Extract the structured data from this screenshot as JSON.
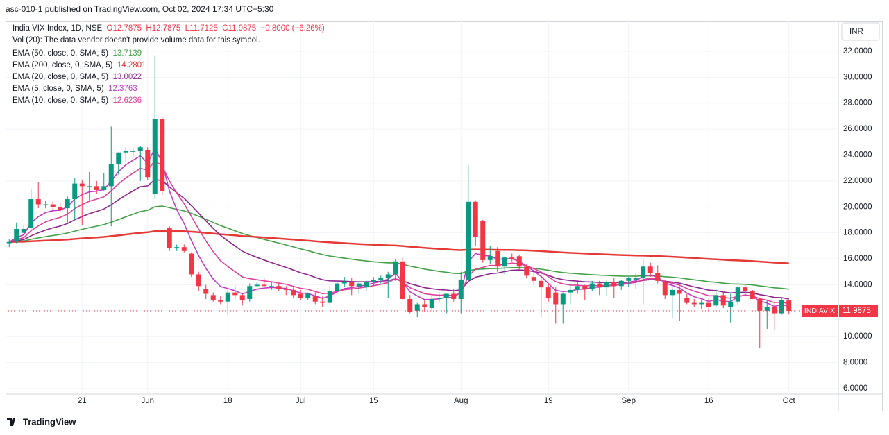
{
  "header": {
    "published": "asc-010-1 published on TradingView.com, Oct 02, 2024 17:34 UTC+5:30",
    "footer": "TradingView",
    "currency": "INR"
  },
  "chart_data": {
    "type": "candlestick",
    "symbol": "India VIX Index, 1D, NSE",
    "ohlc_text": "O12.7875  H12.7875  L11.7125  C11.9875  −0.8000 (−6.26%)",
    "volume_note": "Vol (20): The data vendor doesn't provide volume data for this symbol.",
    "indicators": [
      {
        "label": "EMA (50, close, 0, SMA, 5)",
        "value": 13.7139,
        "period": 50,
        "color": "#43a047"
      },
      {
        "label": "EMA (200, close, 0, SMA, 5)",
        "value": 14.2801,
        "period": 200,
        "color": "#e53935"
      },
      {
        "label": "EMA (20, close, 0, SMA, 5)",
        "value": 13.0022,
        "period": 20,
        "color": "#8e248e"
      },
      {
        "label": "EMA (5, close, 0, SMA, 5)",
        "value": 12.3763,
        "period": 5,
        "color": "#c23bc8"
      },
      {
        "label": "EMA (10, close, 0, SMA, 5)",
        "value": 12.6236,
        "period": 10,
        "color": "#e0409a"
      }
    ],
    "last_tag": "INDIAVIX",
    "last_value": 11.9875,
    "up_color": "#089981",
    "down_color": "#f23645",
    "categories": [
      null,
      null,
      null,
      null,
      null,
      null,
      null,
      null,
      null,
      null,
      "21",
      null,
      null,
      null,
      null,
      null,
      null,
      null,
      null,
      "Jun",
      null,
      null,
      null,
      null,
      null,
      null,
      null,
      null,
      null,
      null,
      "18",
      null,
      null,
      null,
      null,
      null,
      null,
      null,
      null,
      null,
      "Jul",
      null,
      null,
      null,
      null,
      null,
      null,
      null,
      null,
      null,
      "15",
      null,
      null,
      null,
      null,
      null,
      null,
      null,
      null,
      null,
      null,
      null,
      "Aug",
      null,
      null,
      null,
      null,
      null,
      null,
      null,
      null,
      null,
      null,
      null,
      "19",
      null,
      null,
      null,
      null,
      null,
      null,
      null,
      null,
      null,
      null,
      "Sep",
      null,
      null,
      null,
      null,
      null,
      null,
      null,
      null,
      null,
      null,
      "16",
      null,
      null,
      null,
      null,
      null,
      null,
      null,
      null,
      null,
      null,
      "Oct"
    ],
    "open": [
      17.2,
      17.4,
      18.0,
      18.4,
      20.6,
      20.2,
      20.2,
      20.0,
      19.9,
      20.6,
      21.8,
      21.6,
      21.6,
      21.3,
      21.6,
      23.3,
      24.2,
      24.3,
      24.3,
      24.4,
      21.0,
      26.8,
      18.4,
      16.8,
      16.9,
      16.4,
      14.8,
      13.7,
      13.2,
      12.8,
      12.7,
      13.4,
      13.2,
      12.9,
      13.9,
      14.0,
      13.9,
      13.9,
      13.7,
      13.6,
      13.3,
      13.0,
      13.1,
      12.7,
      12.6,
      13.5,
      14.1,
      14.2,
      13.9,
      13.8,
      14.2,
      14.4,
      14.5,
      14.8,
      15.8,
      12.9,
      12.0,
      12.5,
      12.2,
      12.9,
      13.0,
      13.3,
      12.9,
      14.4,
      20.4,
      18.9,
      15.9,
      16.6,
      15.4,
      16.1,
      16.2,
      15.4,
      14.6,
      14.3,
      13.8,
      13.4,
      12.5,
      13.4,
      13.6,
      13.9,
      13.7,
      14.1,
      13.8,
      14.2,
      13.9,
      14.3,
      14.4,
      14.5,
      15.4,
      14.9,
      14.2,
      13.2,
      13.6,
      13.0,
      12.6,
      12.5,
      12.6,
      12.4,
      13.2,
      12.3,
      12.7,
      13.8,
      13.5,
      12.9,
      12.0,
      12.3,
      11.8,
      12.7875
    ],
    "high": [
      17.5,
      18.8,
      18.6,
      21.4,
      21.9,
      20.5,
      20.5,
      20.3,
      20.8,
      22.2,
      22.1,
      22.7,
      22.0,
      22.6,
      26.2,
      24.2,
      24.6,
      24.5,
      24.7,
      24.6,
      31.7,
      26.9,
      18.5,
      17.1,
      17.1,
      16.5,
      15.0,
      14.0,
      13.4,
      13.1,
      13.6,
      13.9,
      13.3,
      14.1,
      14.2,
      14.5,
      14.2,
      14.1,
      13.9,
      13.8,
      13.6,
      13.4,
      13.4,
      13.1,
      13.9,
      14.3,
      14.6,
      14.5,
      14.3,
      14.4,
      14.6,
      14.7,
      15.0,
      16.0,
      16.1,
      13.2,
      12.6,
      12.8,
      13.1,
      13.4,
      13.3,
      13.7,
      15.0,
      23.2,
      20.5,
      19.0,
      17.0,
      16.9,
      16.2,
      16.4,
      16.3,
      15.6,
      15.4,
      14.8,
      14.1,
      13.8,
      13.4,
      14.1,
      14.2,
      14.0,
      14.3,
      14.3,
      14.4,
      14.5,
      14.4,
      14.6,
      14.9,
      16.0,
      15.7,
      15.5,
      14.4,
      13.8,
      13.9,
      13.3,
      12.9,
      12.8,
      13.0,
      13.7,
      13.4,
      13.3,
      13.9,
      14.0,
      13.6,
      13.0,
      12.8,
      12.7,
      13.0,
      12.7875
    ],
    "low": [
      16.9,
      17.2,
      17.8,
      18.2,
      19.9,
      19.9,
      19.6,
      19.6,
      18.8,
      19.0,
      18.6,
      20.5,
      21.0,
      21.2,
      18.5,
      22.5,
      23.5,
      23.8,
      22.0,
      22.1,
      20.6,
      20.9,
      16.6,
      16.6,
      16.5,
      14.6,
      13.5,
      12.9,
      12.7,
      12.5,
      11.7,
      12.9,
      12.4,
      12.7,
      13.8,
      13.8,
      13.6,
      13.5,
      13.2,
      13.0,
      12.8,
      12.8,
      12.5,
      12.3,
      12.5,
      13.3,
      13.8,
      13.2,
      13.3,
      13.5,
      13.9,
      14.1,
      13.0,
      14.3,
      12.8,
      11.8,
      11.5,
      11.9,
      12.0,
      12.6,
      11.8,
      12.7,
      11.8,
      14.2,
      17.0,
      15.7,
      15.6,
      15.0,
      14.8,
      15.8,
      15.2,
      14.5,
      14.0,
      11.5,
      12.7,
      11.0,
      11.0,
      12.5,
      13.3,
      12.8,
      13.5,
      13.2,
      13.1,
      13.0,
      13.6,
      13.8,
      13.7,
      12.5,
      14.6,
      14.1,
      12.9,
      11.4,
      11.2,
      12.5,
      12.3,
      12.1,
      11.9,
      12.3,
      12.2,
      11.1,
      12.4,
      13.1,
      12.9,
      9.1,
      10.6,
      10.5,
      11.7,
      11.7125
    ],
    "close": [
      17.3,
      18.3,
      18.3,
      20.6,
      20.2,
      20.2,
      20.0,
      19.8,
      20.6,
      21.8,
      21.6,
      21.6,
      21.3,
      21.6,
      23.3,
      24.2,
      24.3,
      24.3,
      24.6,
      22.3,
      26.8,
      21.2,
      16.8,
      16.9,
      16.6,
      14.8,
      13.9,
      13.3,
      12.8,
      12.7,
      13.4,
      13.2,
      12.8,
      13.9,
      14.0,
      13.9,
      13.9,
      13.7,
      13.6,
      13.2,
      13.0,
      13.3,
      12.7,
      12.6,
      13.5,
      14.1,
      14.2,
      13.9,
      14.1,
      14.2,
      14.4,
      14.5,
      14.8,
      15.8,
      12.9,
      11.9,
      12.5,
      12.3,
      12.9,
      13.0,
      13.3,
      12.9,
      14.4,
      20.4,
      17.7,
      15.9,
      16.2,
      15.4,
      16.1,
      16.0,
      15.4,
      14.7,
      14.3,
      13.8,
      13.0,
      12.5,
      13.3,
      13.6,
      13.9,
      13.7,
      14.1,
      13.8,
      14.2,
      13.9,
      14.3,
      14.5,
      14.5,
      15.4,
      14.9,
      14.3,
      13.2,
      13.6,
      13.3,
      12.6,
      12.5,
      12.6,
      12.3,
      13.2,
      12.4,
      12.7,
      13.8,
      13.5,
      12.9,
      12.0,
      12.3,
      11.8,
      12.8,
      11.9875
    ],
    "ylim": [
      5.57,
      34.35
    ],
    "yticks": [
      {
        "value": 6,
        "label": "6.0000"
      },
      {
        "value": 8,
        "label": "8.0000"
      },
      {
        "value": 10,
        "label": "10.0000"
      },
      {
        "value": 12,
        "label": "12.0000"
      },
      {
        "value": 14,
        "label": "14.0000"
      },
      {
        "value": 16,
        "label": "16.0000"
      },
      {
        "value": 18,
        "label": "18.0000"
      },
      {
        "value": 20,
        "label": "20.0000"
      },
      {
        "value": 22,
        "label": "22.0000"
      },
      {
        "value": 24,
        "label": "24.0000"
      },
      {
        "value": 26,
        "label": "26.0000"
      },
      {
        "value": 28,
        "label": "28.0000"
      },
      {
        "value": 30,
        "label": "30.0000"
      },
      {
        "value": 32,
        "label": "32.0000"
      }
    ],
    "grid": true
  }
}
